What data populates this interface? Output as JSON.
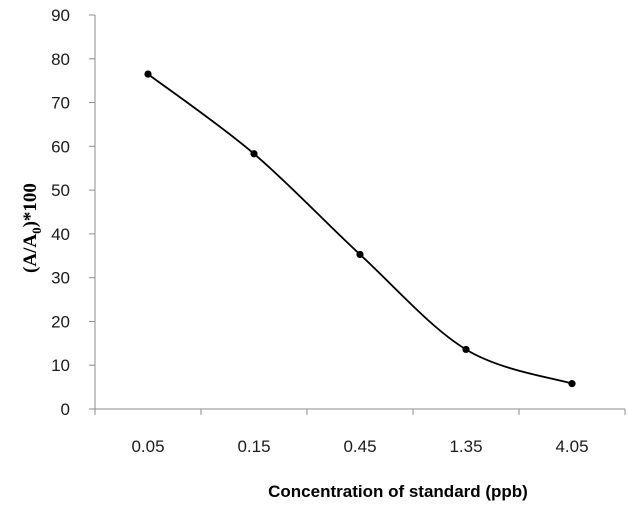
{
  "chart_data": {
    "type": "line",
    "title": "",
    "xlabel": "Concentration of standard (ppb)",
    "ylabel": {
      "prefix": "(A/A",
      "subscript": "0",
      "suffix": ")*100"
    },
    "categories": [
      "0.05",
      "0.15",
      "0.45",
      "1.35",
      "4.05"
    ],
    "series": [
      {
        "values": [
          76.5,
          58.3,
          35.3,
          13.6,
          5.8
        ]
      }
    ],
    "ylim": [
      0,
      90
    ],
    "yticks": [
      "0",
      "10",
      "20",
      "30",
      "40",
      "50",
      "60",
      "70",
      "80",
      "90"
    ],
    "ytick_values": [
      0,
      10,
      20,
      30,
      40,
      50,
      60,
      70,
      80,
      90
    ],
    "grid": false,
    "smooth": true,
    "markers": true,
    "colors": {
      "line": "#000000",
      "marker": "#000000",
      "axis": "#8c8c8c"
    }
  }
}
